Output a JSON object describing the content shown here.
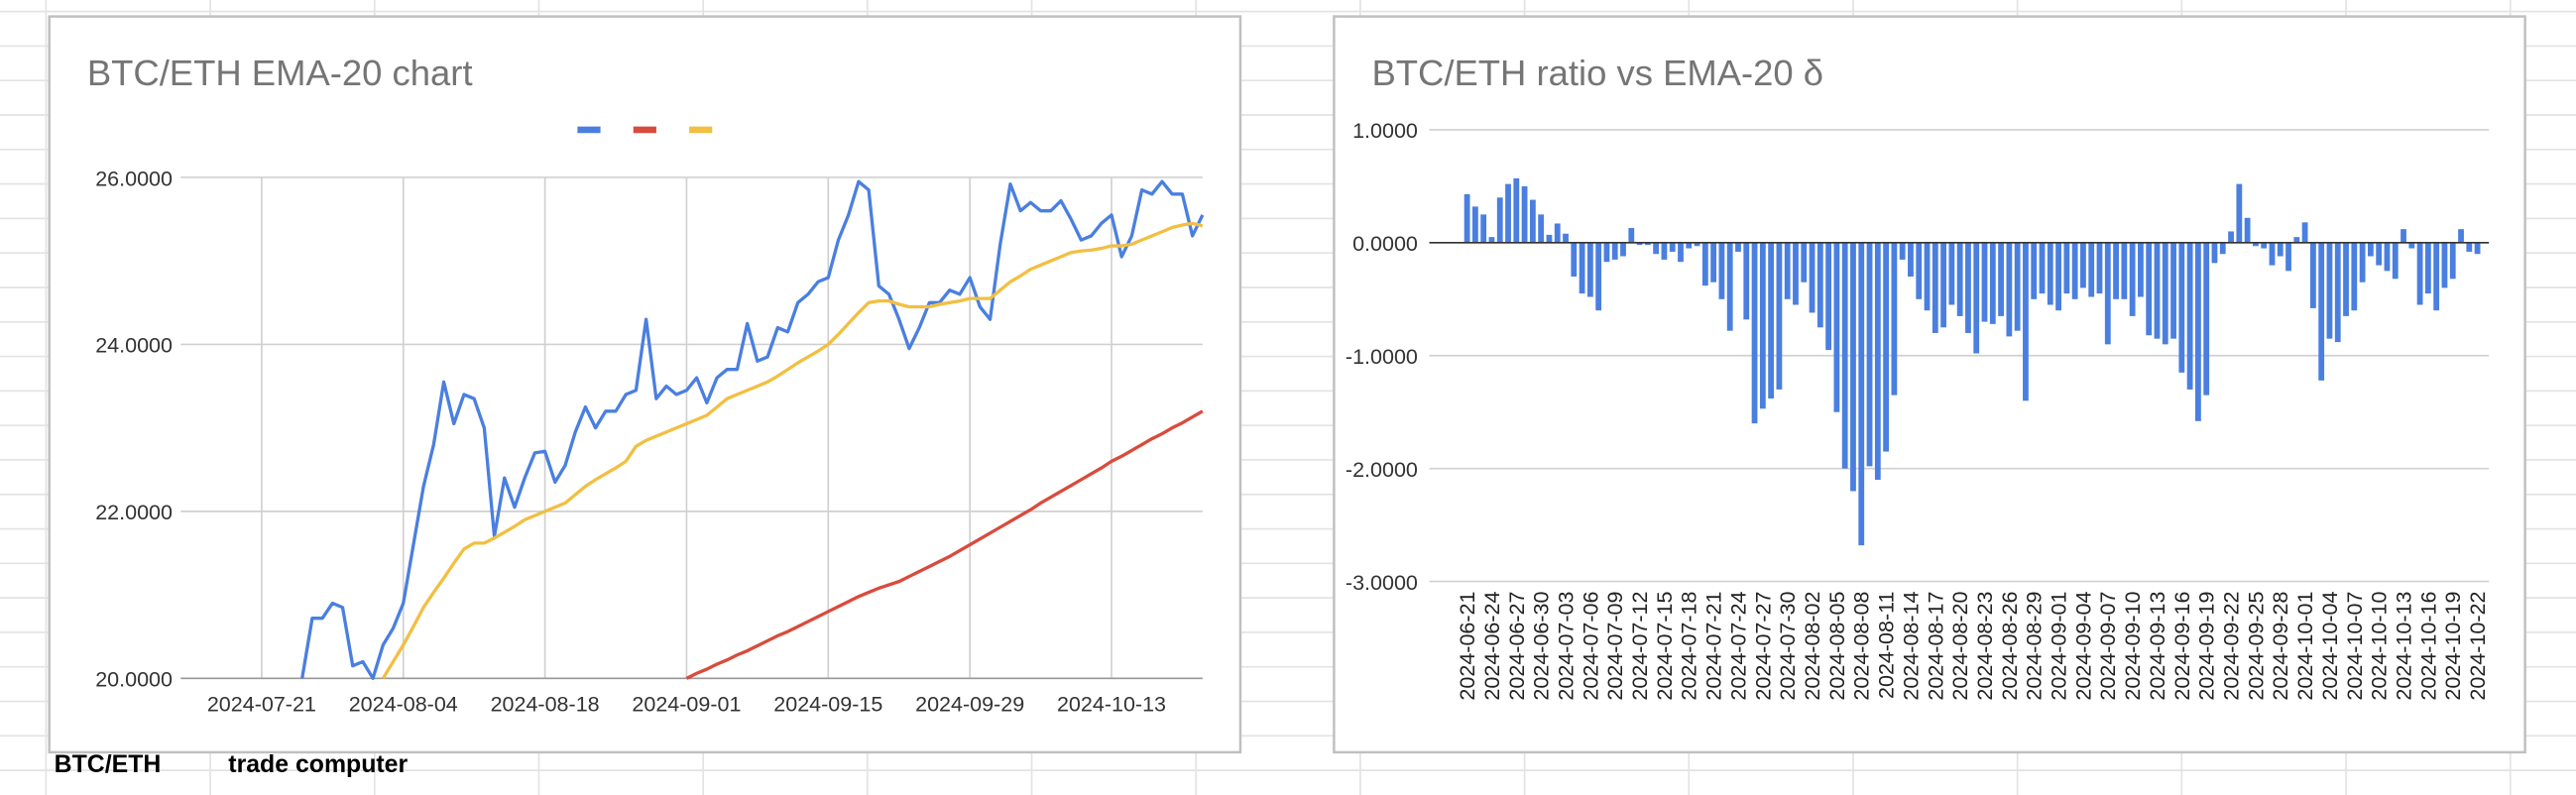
{
  "sheet": {
    "cells": [
      "BTC/ETH",
      "trade computer"
    ]
  },
  "chart_data": [
    {
      "type": "line",
      "title": "BTC/ETH EMA-20 chart",
      "legend": "top",
      "grid": true,
      "x": [
        "2024-07-25",
        "2024-07-26",
        "2024-07-27",
        "2024-07-28",
        "2024-07-29",
        "2024-07-30",
        "2024-07-31",
        "2024-08-01",
        "2024-08-02",
        "2024-08-03",
        "2024-08-04",
        "2024-08-05",
        "2024-08-06",
        "2024-08-07",
        "2024-08-08",
        "2024-08-09",
        "2024-08-10",
        "2024-08-11",
        "2024-08-12",
        "2024-08-13",
        "2024-08-14",
        "2024-08-15",
        "2024-08-16",
        "2024-08-17",
        "2024-08-18",
        "2024-08-19",
        "2024-08-20",
        "2024-08-21",
        "2024-08-22",
        "2024-08-23",
        "2024-08-24",
        "2024-08-25",
        "2024-08-26",
        "2024-08-27",
        "2024-08-28",
        "2024-08-29",
        "2024-08-30",
        "2024-08-31",
        "2024-09-01",
        "2024-09-02",
        "2024-09-03",
        "2024-09-04",
        "2024-09-05",
        "2024-09-06",
        "2024-09-07",
        "2024-09-08",
        "2024-09-09",
        "2024-09-10",
        "2024-09-11",
        "2024-09-12",
        "2024-09-13",
        "2024-09-14",
        "2024-09-15",
        "2024-09-16",
        "2024-09-17",
        "2024-09-18",
        "2024-09-19",
        "2024-09-20",
        "2024-09-21",
        "2024-09-22",
        "2024-09-23",
        "2024-09-24",
        "2024-09-25",
        "2024-09-26",
        "2024-09-27",
        "2024-09-28",
        "2024-09-29",
        "2024-09-30",
        "2024-10-01",
        "2024-10-02",
        "2024-10-03",
        "2024-10-04",
        "2024-10-05",
        "2024-10-06",
        "2024-10-07",
        "2024-10-08",
        "2024-10-09",
        "2024-10-10",
        "2024-10-11",
        "2024-10-12",
        "2024-10-13",
        "2024-10-14",
        "2024-10-15",
        "2024-10-16",
        "2024-10-17",
        "2024-10-18",
        "2024-10-19",
        "2024-10-20",
        "2024-10-21",
        "2024-10-22"
      ],
      "series": [
        {
          "color": "#4a7fe0",
          "values": [
            20.0,
            20.72,
            20.72,
            20.9,
            20.85,
            20.15,
            20.2,
            20.0,
            20.4,
            20.6,
            20.9,
            21.6,
            22.3,
            22.8,
            23.55,
            23.05,
            23.4,
            23.35,
            23.0,
            21.7,
            22.4,
            22.05,
            22.4,
            22.7,
            22.72,
            22.35,
            22.55,
            22.95,
            23.25,
            23.0,
            23.2,
            23.2,
            23.4,
            23.45,
            24.3,
            23.35,
            23.5,
            23.4,
            23.45,
            23.6,
            23.3,
            23.6,
            23.7,
            23.7,
            24.25,
            23.8,
            23.85,
            24.2,
            24.15,
            24.5,
            24.6,
            24.75,
            24.8,
            25.25,
            25.55,
            25.95,
            25.85,
            24.7,
            24.6,
            24.3,
            23.95,
            24.2,
            24.5,
            24.5,
            24.65,
            24.6,
            24.8,
            24.45,
            24.3,
            25.2,
            25.92,
            25.6,
            25.7,
            25.6,
            25.6,
            25.72,
            25.5,
            25.25,
            25.3,
            25.45,
            25.55,
            25.05,
            25.3,
            25.85,
            25.8,
            25.95,
            25.8,
            25.8,
            25.3,
            25.55
          ]
        },
        {
          "color": "#d94b3c",
          "values": [
            null,
            null,
            null,
            null,
            null,
            null,
            null,
            null,
            null,
            null,
            null,
            null,
            null,
            null,
            null,
            null,
            null,
            null,
            null,
            null,
            null,
            null,
            null,
            null,
            null,
            null,
            null,
            null,
            null,
            null,
            null,
            null,
            null,
            null,
            null,
            null,
            null,
            null,
            20.0,
            20.06,
            20.11,
            20.17,
            20.22,
            20.28,
            20.33,
            20.39,
            20.45,
            20.51,
            20.56,
            20.62,
            20.68,
            20.74,
            20.8,
            20.86,
            20.92,
            20.98,
            21.03,
            21.08,
            21.12,
            21.16,
            21.22,
            21.28,
            21.34,
            21.4,
            21.46,
            21.53,
            21.6,
            21.67,
            21.74,
            21.81,
            21.88,
            21.95,
            22.02,
            22.1,
            22.17,
            22.24,
            22.31,
            22.38,
            22.45,
            22.52,
            22.6,
            22.66,
            22.73,
            22.8,
            22.87,
            22.93,
            23.0,
            23.06,
            23.13,
            23.2
          ]
        },
        {
          "color": "#f2bf42",
          "values": [
            null,
            null,
            null,
            null,
            null,
            null,
            null,
            null,
            20.0,
            20.2,
            20.4,
            20.62,
            20.85,
            21.03,
            21.2,
            21.38,
            21.55,
            21.62,
            21.62,
            21.68,
            21.75,
            21.82,
            21.9,
            21.95,
            22.0,
            22.05,
            22.1,
            22.2,
            22.3,
            22.38,
            22.45,
            22.52,
            22.6,
            22.78,
            22.85,
            22.9,
            22.95,
            23.0,
            23.05,
            23.1,
            23.15,
            23.25,
            23.35,
            23.4,
            23.45,
            23.5,
            23.55,
            23.62,
            23.7,
            23.78,
            23.85,
            23.92,
            24.0,
            24.12,
            24.25,
            24.38,
            24.5,
            24.52,
            24.52,
            24.48,
            24.45,
            24.45,
            24.45,
            24.48,
            24.5,
            24.52,
            24.55,
            24.55,
            24.55,
            24.65,
            24.75,
            24.82,
            24.9,
            24.95,
            25.0,
            25.05,
            25.1,
            25.12,
            25.13,
            25.15,
            25.18,
            25.18,
            25.2,
            25.25,
            25.3,
            25.35,
            25.4,
            25.43,
            25.45,
            25.42
          ]
        }
      ],
      "xlim": [
        "2024-07-13",
        "2024-10-22"
      ],
      "xticks": [
        "2024-07-21",
        "2024-08-04",
        "2024-08-18",
        "2024-09-01",
        "2024-09-15",
        "2024-09-29",
        "2024-10-13"
      ],
      "ylim": [
        20,
        26
      ],
      "yticks": [
        {
          "value": 20,
          "label": "20.0000"
        },
        {
          "value": 22,
          "label": "22.0000"
        },
        {
          "value": 24,
          "label": "24.0000"
        },
        {
          "value": 26,
          "label": "26.0000"
        }
      ]
    },
    {
      "type": "bar",
      "title": "BTC/ETH ratio vs EMA-20 δ",
      "grid": true,
      "color": "#4a7fe0",
      "categories": [
        "2024-06-21",
        null,
        null,
        "2024-06-24",
        null,
        null,
        "2024-06-27",
        null,
        null,
        "2024-06-30",
        null,
        null,
        "2024-07-03",
        null,
        null,
        "2024-07-06",
        null,
        null,
        "2024-07-09",
        null,
        null,
        "2024-07-12",
        null,
        null,
        "2024-07-15",
        null,
        null,
        "2024-07-18",
        null,
        null,
        "2024-07-21",
        null,
        null,
        "2024-07-24",
        null,
        null,
        "2024-07-27",
        null,
        null,
        "2024-07-30",
        null,
        null,
        "2024-08-02",
        null,
        null,
        "2024-08-05",
        null,
        null,
        "2024-08-08",
        null,
        null,
        "2024-08-11",
        null,
        null,
        "2024-08-14",
        null,
        null,
        "2024-08-17",
        null,
        null,
        "2024-08-20",
        null,
        null,
        "2024-08-23",
        null,
        null,
        "2024-08-26",
        null,
        null,
        "2024-08-29",
        null,
        null,
        "2024-09-01",
        null,
        null,
        "2024-09-04",
        null,
        null,
        "2024-09-07",
        null,
        null,
        "2024-09-10",
        null,
        null,
        "2024-09-13",
        null,
        null,
        "2024-09-16",
        null,
        null,
        "2024-09-19",
        null,
        null,
        "2024-09-22",
        null,
        null,
        "2024-09-25",
        null,
        null,
        "2024-09-28",
        null,
        null,
        "2024-10-01",
        null,
        null,
        "2024-10-04",
        null,
        null,
        "2024-10-07",
        null,
        null,
        "2024-10-10",
        null,
        null,
        "2024-10-13",
        null,
        null,
        "2024-10-16",
        null,
        null,
        "2024-10-19",
        null,
        null,
        "2024-10-22"
      ],
      "values": [
        0.43,
        0.32,
        0.25,
        0.05,
        0.4,
        0.52,
        0.57,
        0.5,
        0.38,
        0.25,
        0.07,
        0.17,
        0.08,
        -0.3,
        -0.45,
        -0.48,
        -0.6,
        -0.17,
        -0.15,
        -0.12,
        0.13,
        -0.02,
        -0.02,
        -0.1,
        -0.15,
        -0.08,
        -0.17,
        -0.05,
        -0.03,
        -0.38,
        -0.35,
        -0.5,
        -0.78,
        -0.08,
        -0.68,
        -1.6,
        -1.47,
        -1.38,
        -1.3,
        -0.5,
        -0.55,
        -0.35,
        -0.62,
        -0.75,
        -0.95,
        -1.5,
        -2.0,
        -2.2,
        -2.68,
        -1.98,
        -2.1,
        -1.85,
        -1.35,
        -0.15,
        -0.3,
        -0.5,
        -0.6,
        -0.8,
        -0.75,
        -0.55,
        -0.65,
        -0.8,
        -0.98,
        -0.7,
        -0.72,
        -0.65,
        -0.83,
        -0.78,
        -1.4,
        -0.5,
        -0.45,
        -0.55,
        -0.6,
        -0.45,
        -0.5,
        -0.4,
        -0.48,
        -0.45,
        -0.9,
        -0.5,
        -0.5,
        -0.65,
        -0.48,
        -0.82,
        -0.85,
        -0.9,
        -0.85,
        -1.15,
        -1.3,
        -1.58,
        -1.35,
        -0.18,
        -0.1,
        0.1,
        0.52,
        0.22,
        -0.03,
        -0.05,
        -0.2,
        -0.12,
        -0.25,
        0.05,
        0.18,
        -0.58,
        -1.22,
        -0.85,
        -0.88,
        -0.65,
        -0.6,
        -0.35,
        -0.12,
        -0.2,
        -0.25,
        -0.32,
        0.12,
        -0.05,
        -0.55,
        -0.45,
        -0.6,
        -0.4,
        -0.32,
        0.12,
        -0.08,
        -0.1
      ],
      "ylim": [
        -3,
        1
      ],
      "yticks": [
        {
          "value": 1,
          "label": "1.0000"
        },
        {
          "value": 0,
          "label": "0.0000"
        },
        {
          "value": -1,
          "label": "-1.0000"
        },
        {
          "value": -2,
          "label": "-2.0000"
        },
        {
          "value": -3,
          "label": "-3.0000"
        }
      ]
    }
  ]
}
